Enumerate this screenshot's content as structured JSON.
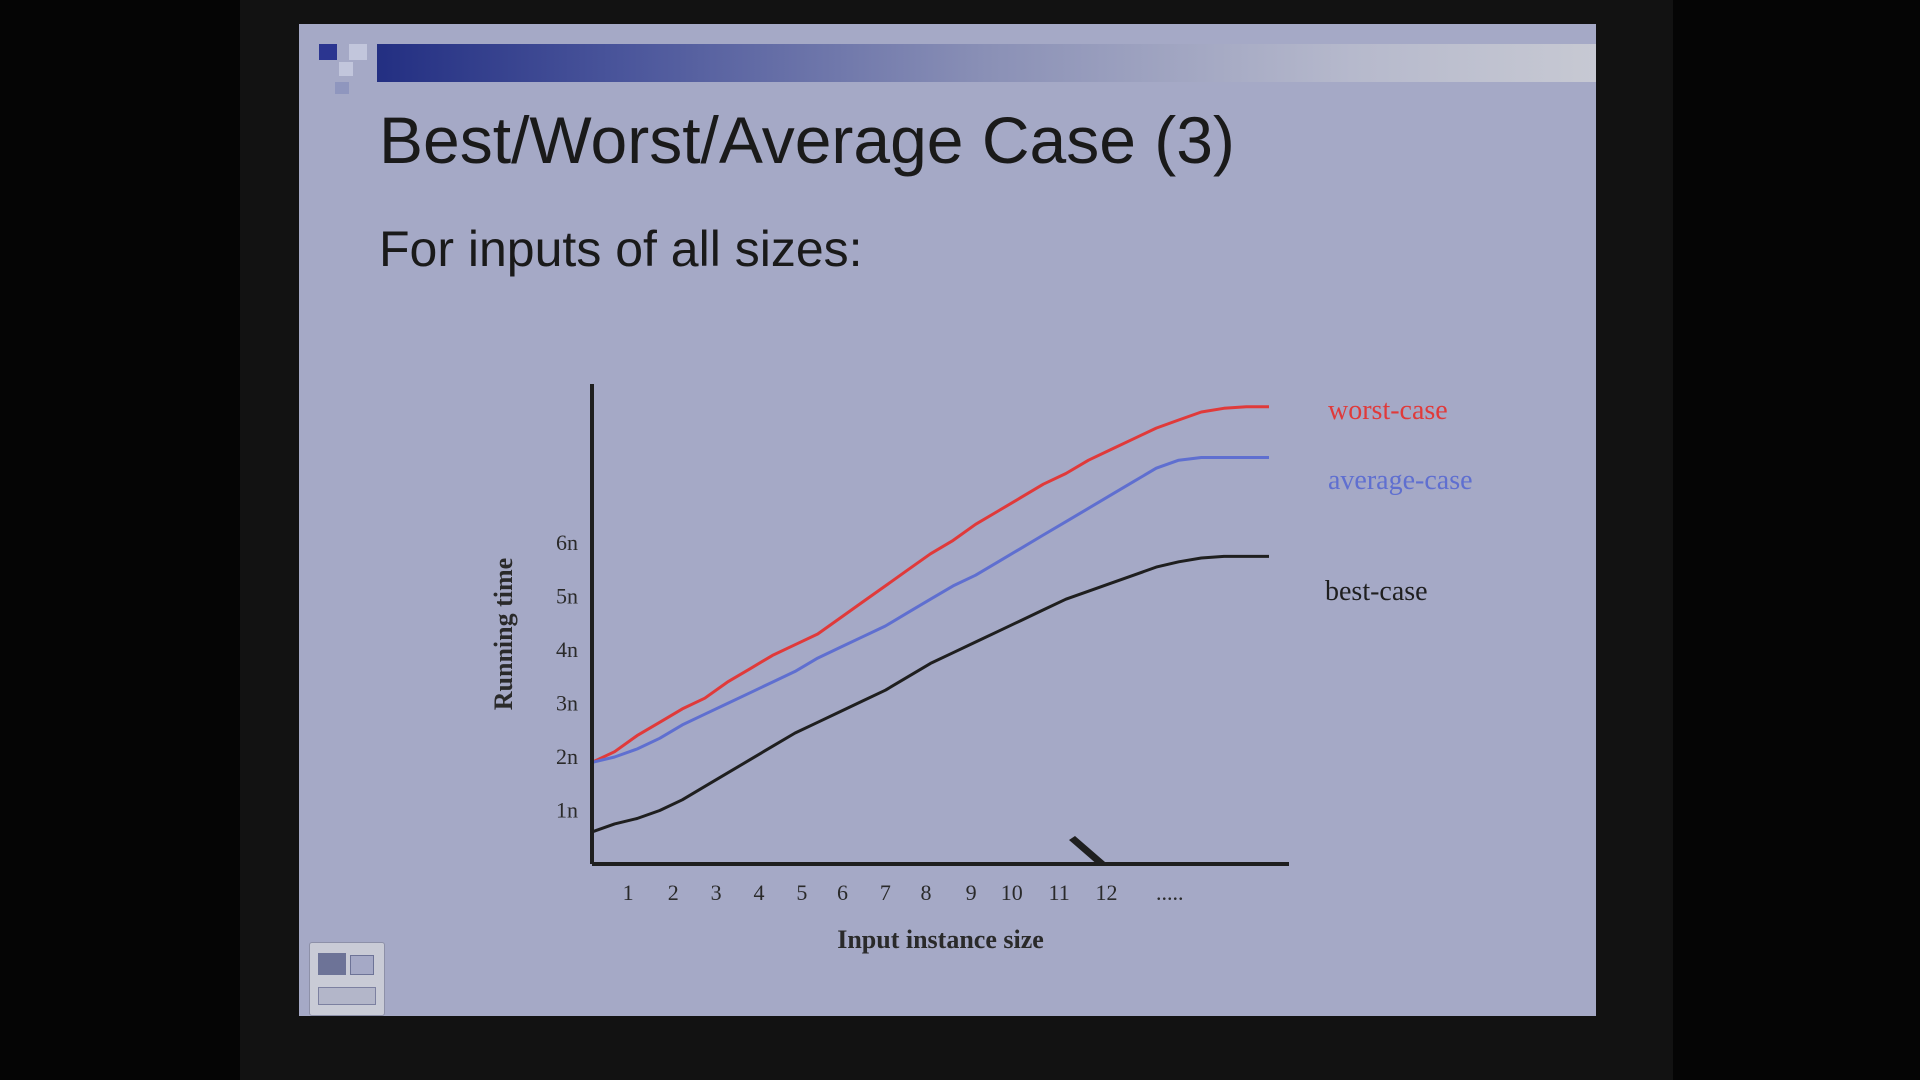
{
  "slide": {
    "title": "Best/Worst/Average Case (3)",
    "bullet": "For inputs of all sizes:"
  },
  "chart_data": {
    "type": "line",
    "xlabel": "Input instance size",
    "ylabel": "Running time",
    "x_ticks": [
      "1",
      "2",
      "3",
      "4",
      "5",
      "6",
      "7",
      "8",
      "9",
      "10",
      "11",
      "12",
      "....."
    ],
    "y_ticks": [
      "1n",
      "2n",
      "3n",
      "4n",
      "5n",
      "6n"
    ],
    "x": [
      0,
      0.5,
      1,
      1.5,
      2,
      2.5,
      3,
      3.5,
      4,
      4.5,
      5,
      5.5,
      6,
      6.5,
      7,
      7.5,
      8,
      8.5,
      9,
      9.5,
      10,
      10.5,
      11,
      11.5,
      12,
      12.5,
      13,
      13.5,
      14,
      14.5,
      15
    ],
    "series": [
      {
        "name": "worst-case",
        "color": "#e03a3a",
        "values": [
          1.9,
          2.1,
          2.4,
          2.65,
          2.9,
          3.1,
          3.4,
          3.65,
          3.9,
          4.1,
          4.3,
          4.6,
          4.9,
          5.2,
          5.5,
          5.8,
          6.05,
          6.35,
          6.6,
          6.85,
          7.1,
          7.3,
          7.55,
          7.75,
          7.95,
          8.15,
          8.3,
          8.45,
          8.52,
          8.55,
          8.55
        ]
      },
      {
        "name": "average-case",
        "color": "#5f6fd0",
        "values": [
          1.9,
          2.0,
          2.15,
          2.35,
          2.6,
          2.8,
          3.0,
          3.2,
          3.4,
          3.6,
          3.85,
          4.05,
          4.25,
          4.45,
          4.7,
          4.95,
          5.2,
          5.4,
          5.65,
          5.9,
          6.15,
          6.4,
          6.65,
          6.9,
          7.15,
          7.4,
          7.55,
          7.6,
          7.6,
          7.6,
          7.6
        ]
      },
      {
        "name": "best-case",
        "color": "#1f1f1f",
        "values": [
          0.6,
          0.75,
          0.85,
          1.0,
          1.2,
          1.45,
          1.7,
          1.95,
          2.2,
          2.45,
          2.65,
          2.85,
          3.05,
          3.25,
          3.5,
          3.75,
          3.95,
          4.15,
          4.35,
          4.55,
          4.75,
          4.95,
          5.1,
          5.25,
          5.4,
          5.55,
          5.65,
          5.72,
          5.75,
          5.75,
          5.75
        ]
      }
    ],
    "xlim": [
      0,
      15
    ],
    "ylim": [
      0,
      8.6
    ],
    "grid": false
  }
}
